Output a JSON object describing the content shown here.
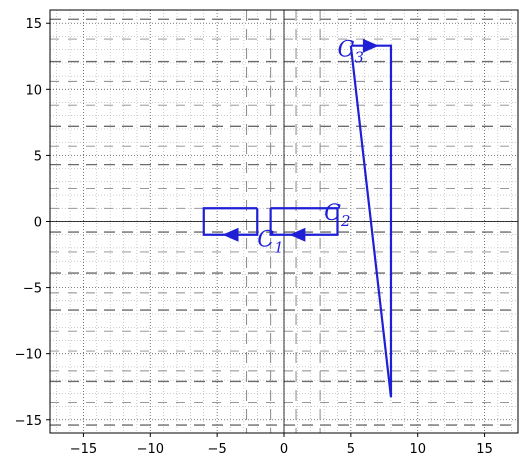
{
  "chart_data": {
    "type": "line",
    "title": "",
    "xlabel": "",
    "ylabel": "",
    "xlim": [
      -17.5,
      17.5
    ],
    "ylim": [
      -16,
      16
    ],
    "x_ticks": [
      -15,
      -10,
      -5,
      0,
      5,
      10,
      15
    ],
    "y_ticks": [
      -15,
      -10,
      -5,
      0,
      5,
      10,
      15
    ],
    "x_tick_labels": [
      "−15",
      "−10",
      "−5",
      "0",
      "5",
      "10",
      "15"
    ],
    "y_tick_labels": [
      "−15",
      "−10",
      "−5",
      "0",
      "5",
      "10",
      "15"
    ],
    "grid": true,
    "minor_grid": true,
    "dashed_guide_lines": {
      "horizontal_y": [
        15.3,
        12.1,
        7.2,
        4.3,
        -0.8,
        -3.9,
        -6.7,
        -12.1,
        -15.4
      ],
      "horizontal_y_light": [
        13.8,
        10.6,
        8.8,
        5.7,
        2.5,
        1.0,
        -2.3,
        -5.4,
        -8.3,
        -9.8,
        -11.3,
        -13.7
      ],
      "vertical_x": [
        -2.8,
        -1.0,
        0.9,
        2.7
      ]
    },
    "color": "#1f1fd6",
    "series": [
      {
        "label": "C_1",
        "points": [
          [
            -2,
            1
          ],
          [
            -6,
            1
          ],
          [
            -6,
            -1
          ],
          [
            -2,
            -1
          ],
          [
            -2,
            1
          ]
        ],
        "arrow": {
          "at": [
            -4,
            -1
          ],
          "direction": "left"
        },
        "label_pos": [
          -2.0,
          -1.9
        ]
      },
      {
        "label": "C_2",
        "points": [
          [
            -1,
            1
          ],
          [
            4,
            1
          ],
          [
            4,
            -1
          ],
          [
            -1,
            -1
          ],
          [
            -1,
            1
          ]
        ],
        "arrow": {
          "at": [
            1,
            -1
          ],
          "direction": "left"
        },
        "label_pos": [
          3,
          0.1
        ]
      },
      {
        "label": "C_3",
        "points": [
          [
            5,
            13.3
          ],
          [
            8,
            13.3
          ],
          [
            8,
            -13.3
          ],
          [
            5,
            13.3
          ]
        ],
        "arrow": {
          "at": [
            6.5,
            13.3
          ],
          "direction": "right"
        },
        "label_pos": [
          4,
          12.5
        ]
      }
    ]
  }
}
